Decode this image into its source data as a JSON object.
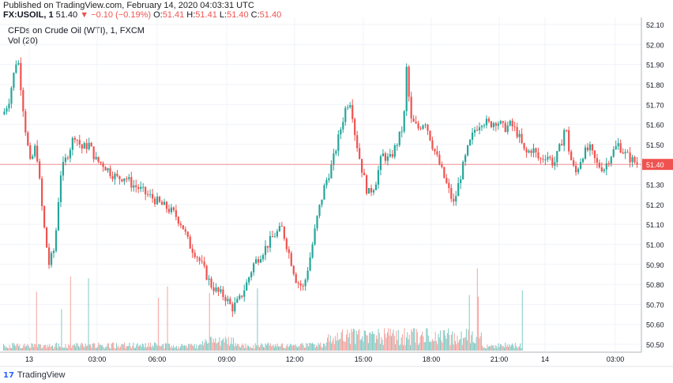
{
  "header": {
    "published": "Published on TradingView.com, February 14, 2020 04:03:31 UTC",
    "symbol": "FX:USOIL, 1",
    "price": "51.40",
    "change": "−0.10 (−0.19%)",
    "o_label": "O:",
    "o_value": "51.41",
    "h_label": "H:",
    "h_value": "51.41",
    "l_label": "L:",
    "l_value": "51.40",
    "c_label": "C:",
    "c_value": "51.40"
  },
  "chart_legend": {
    "series": "CFDs on Crude Oil (WTI), 1, FXCM",
    "volume": "Vol (20)"
  },
  "brand": {
    "name": "TradingView",
    "logo_text": "17"
  },
  "colors": {
    "up": "#26a69a",
    "down": "#ef5350",
    "vol_up": "#80cbc4",
    "vol_down": "#f5a39f",
    "grid": "#f0f3fa",
    "axis": "#b2b5be",
    "last_price": "#ef5350"
  },
  "chart_data": {
    "type": "candlestick",
    "title": "CFDs on Crude Oil (WTI), 1, FXCM",
    "ylim": [
      50.45,
      52.12
    ],
    "y_ticks": [
      "52.10",
      "52.00",
      "51.90",
      "51.80",
      "51.70",
      "51.60",
      "51.50",
      "51.40",
      "51.30",
      "51.20",
      "51.10",
      "51.00",
      "50.90",
      "50.80",
      "50.70",
      "50.60",
      "50.50"
    ],
    "x_ticks": [
      "13",
      "03:00",
      "06:00",
      "09:00",
      "12:00",
      "15:00",
      "18:00",
      "21:00",
      "14",
      "03:00"
    ],
    "last_price": "51.40",
    "price_path": [
      [
        0,
        51.65
      ],
      [
        0.4,
        51.72
      ],
      [
        1.0,
        51.95
      ],
      [
        1.6,
        51.55
      ],
      [
        1.9,
        51.4
      ],
      [
        2.3,
        51.5
      ],
      [
        2.8,
        51.12
      ],
      [
        3.2,
        50.9
      ],
      [
        3.6,
        50.98
      ],
      [
        4.0,
        51.35
      ],
      [
        4.5,
        51.45
      ],
      [
        5.0,
        51.55
      ],
      [
        5.5,
        51.48
      ],
      [
        6.0,
        51.5
      ],
      [
        6.5,
        51.42
      ],
      [
        7.0,
        51.4
      ],
      [
        7.5,
        51.36
      ],
      [
        8.0,
        51.33
      ],
      [
        8.5,
        51.34
      ],
      [
        9.0,
        51.3
      ],
      [
        9.5,
        51.28
      ],
      [
        10.0,
        51.25
      ],
      [
        10.5,
        51.23
      ],
      [
        11.0,
        51.2
      ],
      [
        11.5,
        51.18
      ],
      [
        12.0,
        51.15
      ],
      [
        12.5,
        51.1
      ],
      [
        13.0,
        51.0
      ],
      [
        13.5,
        50.95
      ],
      [
        14.0,
        50.88
      ],
      [
        14.5,
        50.8
      ],
      [
        15.0,
        50.76
      ],
      [
        15.5,
        50.74
      ],
      [
        16.0,
        50.68
      ],
      [
        16.5,
        50.72
      ],
      [
        17.0,
        50.8
      ],
      [
        17.5,
        50.9
      ],
      [
        18.0,
        50.95
      ],
      [
        18.5,
        51.0
      ],
      [
        19.0,
        51.05
      ],
      [
        19.5,
        51.08
      ],
      [
        20.0,
        50.95
      ],
      [
        20.5,
        50.82
      ],
      [
        21.0,
        50.78
      ],
      [
        21.5,
        50.95
      ],
      [
        22.0,
        51.15
      ],
      [
        22.5,
        51.3
      ],
      [
        23.0,
        51.4
      ],
      [
        23.5,
        51.55
      ],
      [
        24.0,
        51.7
      ],
      [
        24.3,
        51.72
      ],
      [
        24.6,
        51.55
      ],
      [
        25.0,
        51.4
      ],
      [
        25.5,
        51.25
      ],
      [
        26.0,
        51.3
      ],
      [
        26.5,
        51.45
      ],
      [
        27.0,
        51.42
      ],
      [
        27.5,
        51.5
      ],
      [
        28.0,
        51.6
      ],
      [
        28.2,
        51.88
      ],
      [
        28.5,
        51.62
      ],
      [
        29.0,
        51.58
      ],
      [
        29.5,
        51.62
      ],
      [
        30.0,
        51.5
      ],
      [
        30.5,
        51.4
      ],
      [
        31.0,
        51.3
      ],
      [
        31.5,
        51.2
      ],
      [
        32.0,
        51.35
      ],
      [
        32.5,
        51.48
      ],
      [
        33.0,
        51.58
      ],
      [
        33.5,
        51.62
      ],
      [
        34.0,
        51.6
      ],
      [
        34.5,
        51.62
      ],
      [
        35.0,
        51.58
      ],
      [
        35.5,
        51.6
      ],
      [
        36.0,
        51.55
      ],
      [
        36.5,
        51.45
      ],
      [
        37.0,
        51.48
      ],
      [
        37.5,
        51.42
      ],
      [
        38.0,
        51.45
      ],
      [
        38.5,
        51.4
      ],
      [
        39.0,
        51.5
      ],
      [
        39.3,
        51.6
      ],
      [
        39.6,
        51.45
      ],
      [
        40.0,
        51.35
      ],
      [
        40.5,
        51.45
      ],
      [
        41.0,
        51.48
      ],
      [
        41.5,
        51.4
      ],
      [
        42.0,
        51.38
      ],
      [
        42.5,
        51.45
      ],
      [
        43.0,
        51.5
      ],
      [
        43.5,
        51.45
      ],
      [
        44.0,
        51.42
      ],
      [
        44.4,
        51.4
      ]
    ],
    "volume_note": "bars along bottom, up/down coloured"
  }
}
